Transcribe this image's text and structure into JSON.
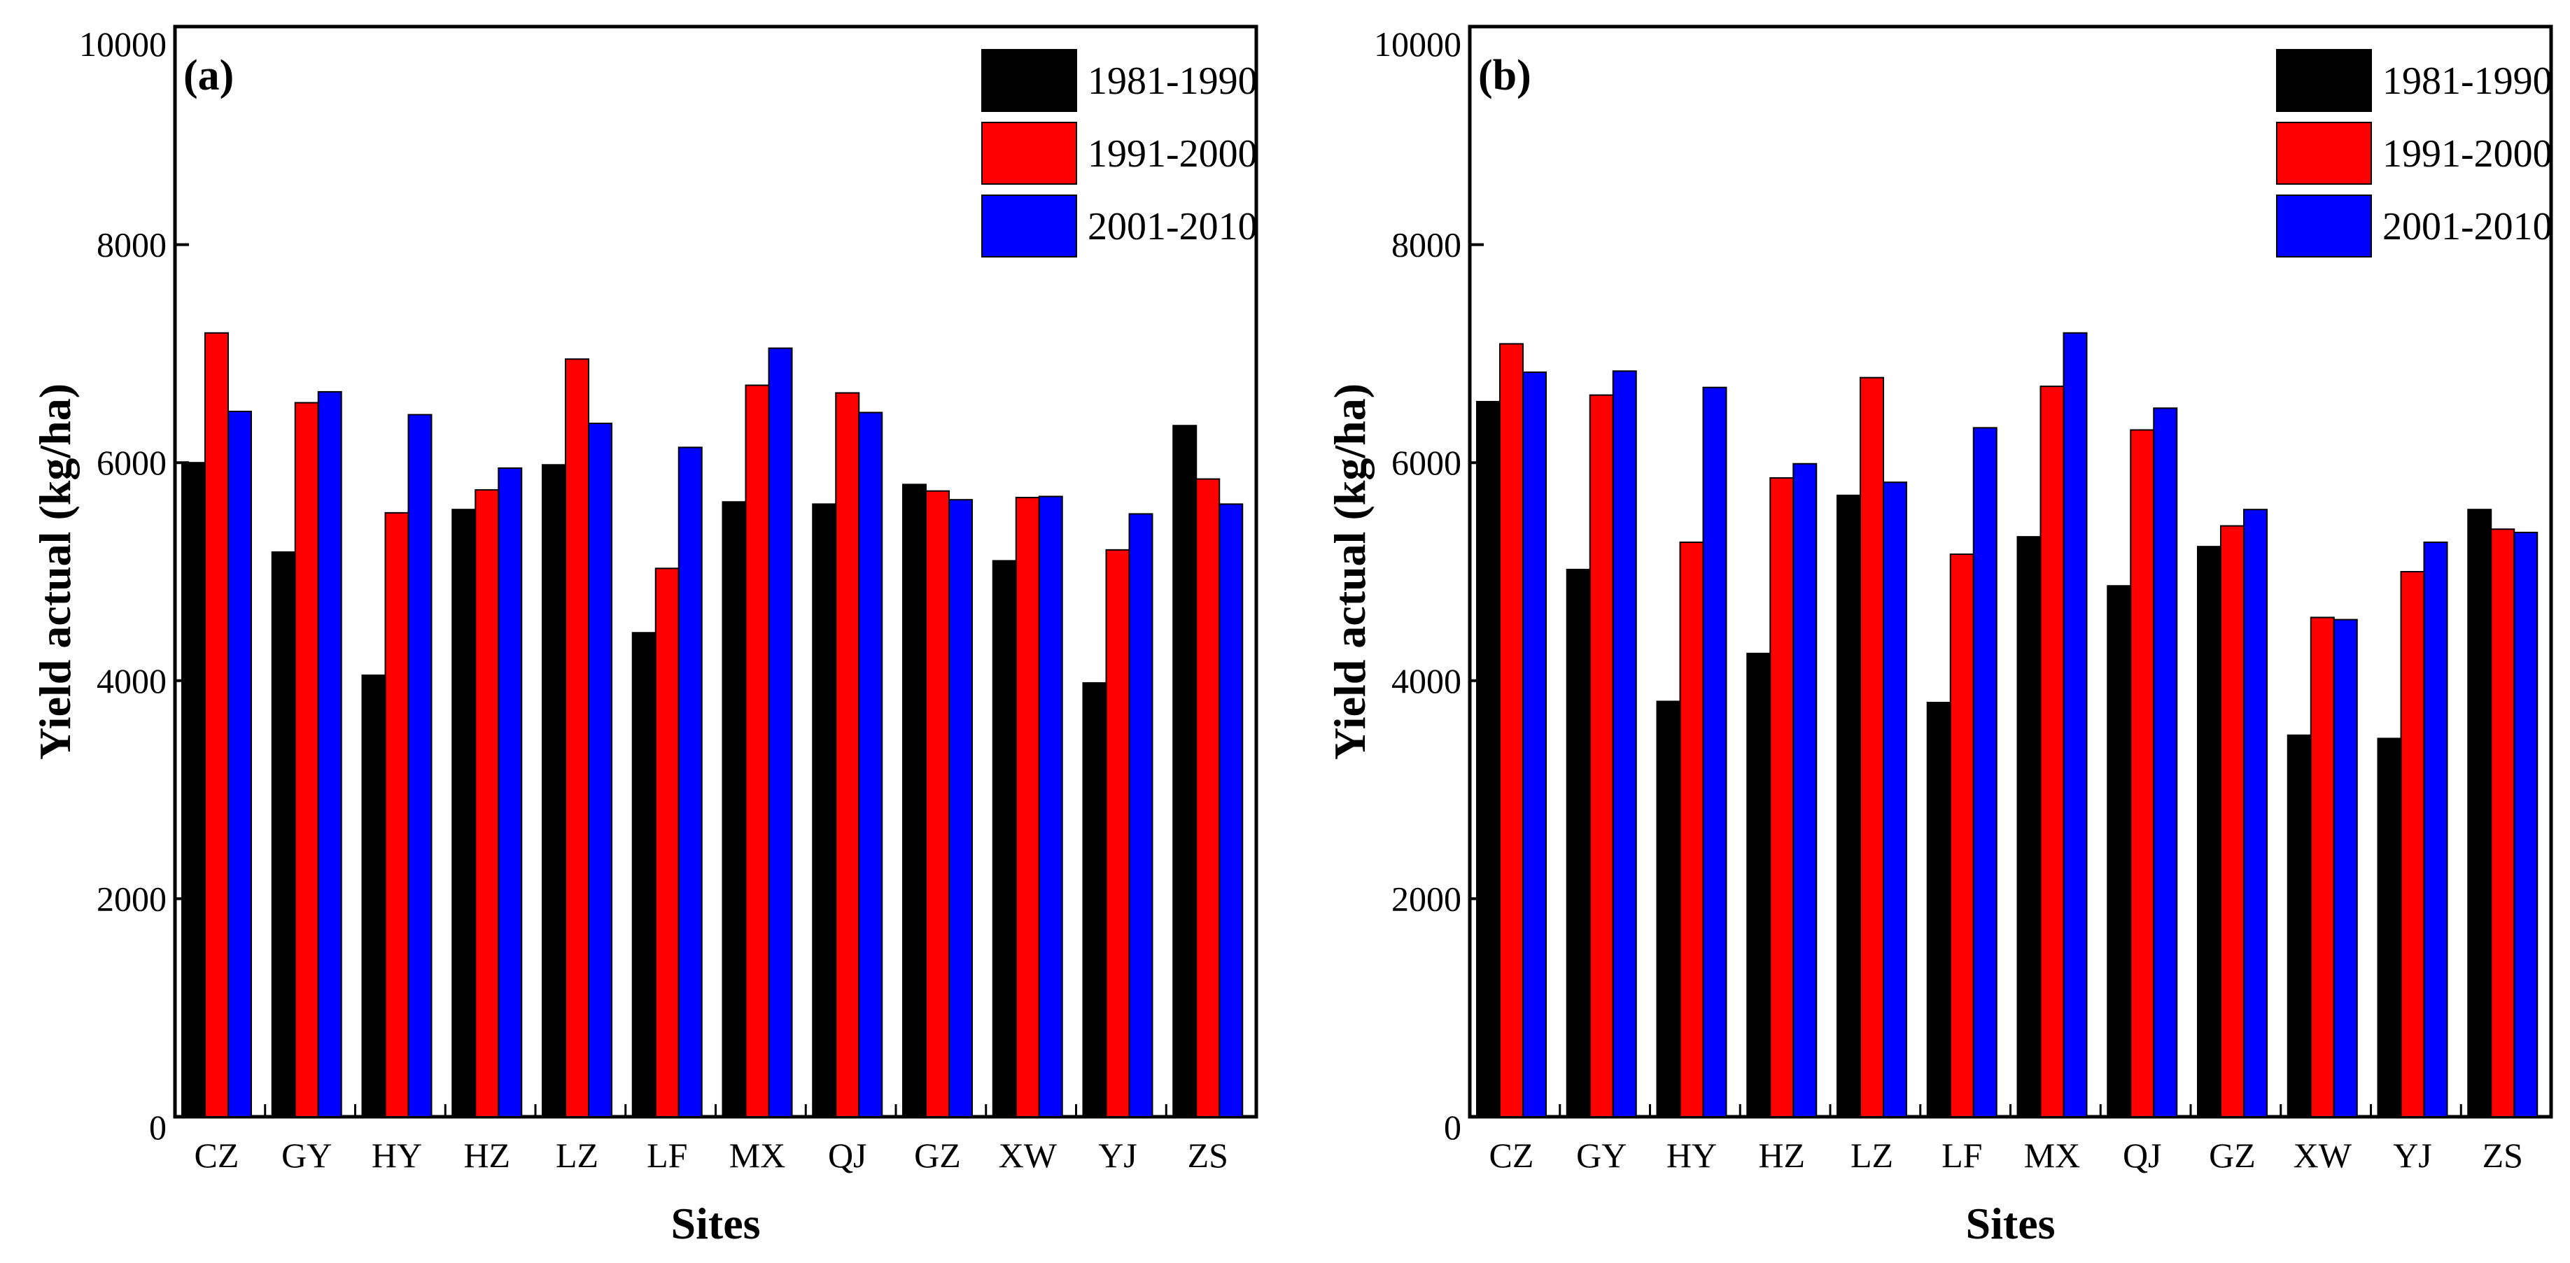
{
  "chart_data": [
    {
      "type": "bar",
      "panel_label": "(a)",
      "categories": [
        "CZ",
        "GY",
        "HY",
        "HZ",
        "LZ",
        "LF",
        "MX",
        "QJ",
        "GZ",
        "XW",
        "YJ",
        "ZS"
      ],
      "series": [
        {
          "name": "1981-1990",
          "color": "#000000",
          "values": [
            6000,
            5180,
            4050,
            5570,
            5980,
            4440,
            5640,
            5620,
            5800,
            5100,
            3980,
            6340
          ]
        },
        {
          "name": "1991-2000",
          "color": "#ff0000",
          "values": [
            7190,
            6550,
            5540,
            5750,
            6950,
            5030,
            6710,
            6640,
            5740,
            5680,
            5200,
            5850
          ]
        },
        {
          "name": "2001-2010",
          "color": "#0000ff",
          "values": [
            6470,
            6650,
            6440,
            5950,
            6360,
            6140,
            7050,
            6460,
            5660,
            5690,
            5530,
            5620
          ]
        }
      ],
      "xlabel": "Sites",
      "ylabel": "Yield actual (kg/ha)",
      "ylim": [
        0,
        10000
      ],
      "yticks": [
        "0",
        "2000",
        "4000",
        "6000",
        "8000",
        "10000"
      ],
      "legend_position": "top-right"
    },
    {
      "type": "bar",
      "panel_label": "(b)",
      "categories": [
        "CZ",
        "GY",
        "HY",
        "HZ",
        "LZ",
        "LF",
        "MX",
        "QJ",
        "GZ",
        "XW",
        "YJ",
        "ZS"
      ],
      "series": [
        {
          "name": "1981-1990",
          "color": "#000000",
          "values": [
            6560,
            5020,
            3810,
            4250,
            5700,
            3800,
            5320,
            4870,
            5230,
            3500,
            3470,
            5570
          ]
        },
        {
          "name": "1991-2000",
          "color": "#ff0000",
          "values": [
            7090,
            6620,
            5270,
            5860,
            6780,
            5160,
            6700,
            6300,
            5420,
            4580,
            5000,
            5390
          ]
        },
        {
          "name": "2001-2010",
          "color": "#0000ff",
          "values": [
            6830,
            6840,
            6690,
            5990,
            5820,
            6320,
            7190,
            6500,
            5570,
            4560,
            5270,
            5360
          ]
        }
      ],
      "xlabel": "Sites",
      "ylabel": "Yield actual (kg/ha)",
      "ylim": [
        0,
        10000
      ],
      "yticks": [
        "0",
        "2000",
        "4000",
        "6000",
        "8000",
        "10000"
      ],
      "legend_position": "top-right"
    }
  ]
}
